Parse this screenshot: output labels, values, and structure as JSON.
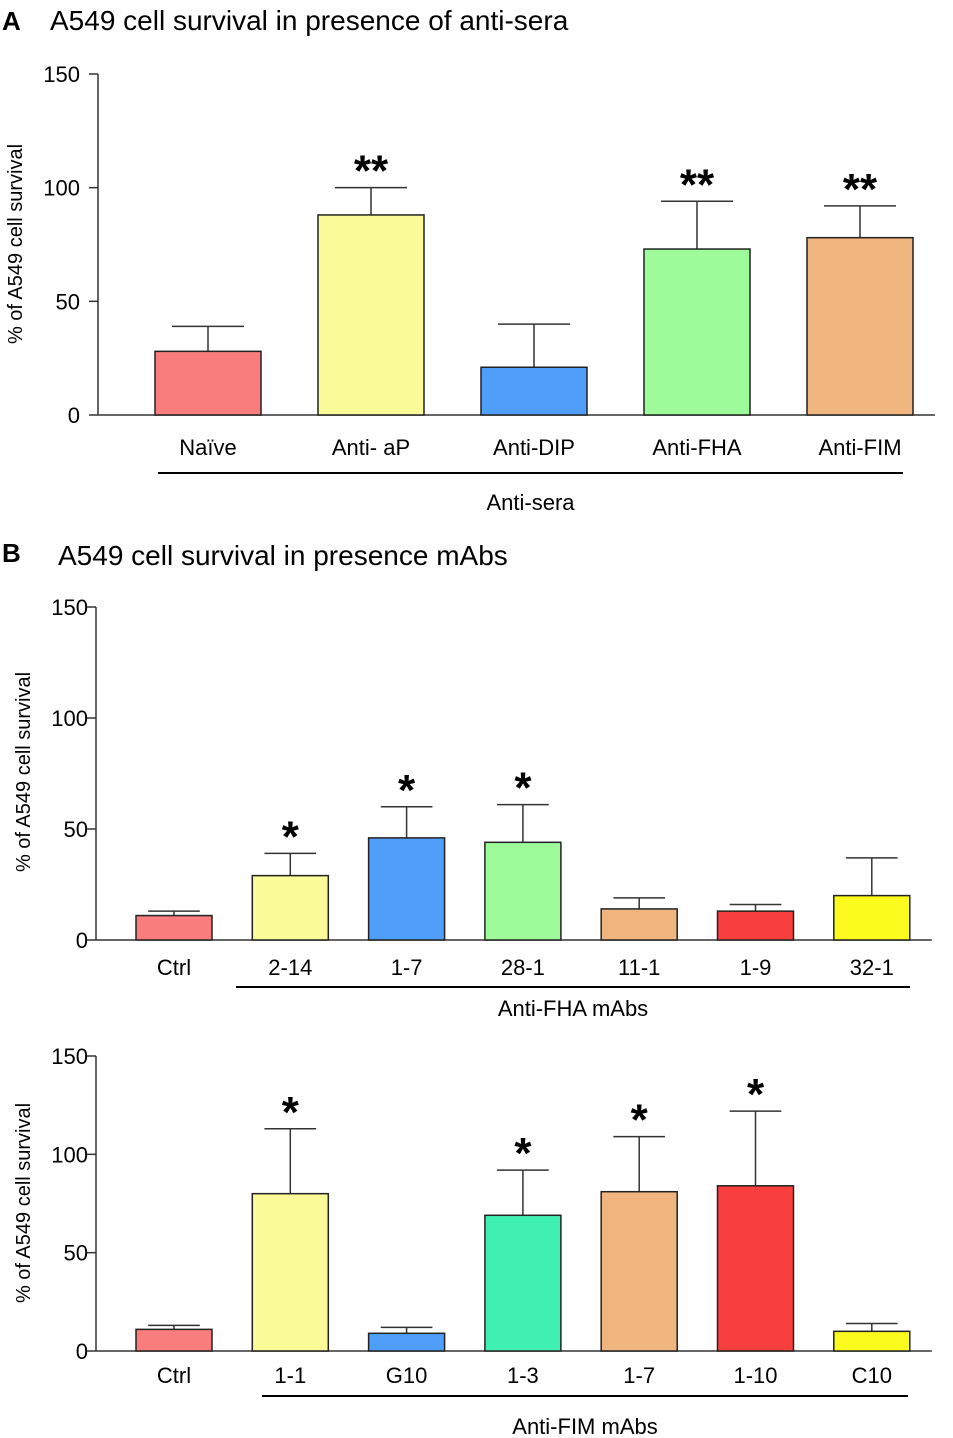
{
  "chart_data": [
    {
      "type": "bar",
      "panel": "A",
      "title": "A549 cell survival in presence of anti-sera",
      "ylabel": "% of A549 cell survival",
      "xlabel": "",
      "ylim": [
        0,
        150
      ],
      "yticks": [
        0,
        50,
        100,
        150
      ],
      "categories": [
        "Naïve",
        "Anti- aP",
        "Anti-DIP",
        "Anti-FHA",
        "Anti-FIM"
      ],
      "values": [
        28,
        88,
        21,
        73,
        78
      ],
      "errors": [
        11,
        12,
        19,
        21,
        14
      ],
      "colors": [
        "#fa7d7d",
        "#fbfb9a",
        "#4e9efa",
        "#9dfb9a",
        "#f0b47e"
      ],
      "significance": [
        "",
        "**",
        "",
        "**",
        "**"
      ],
      "groups": [
        {
          "label": "Anti-sera",
          "from": 0,
          "to": 4
        }
      ]
    },
    {
      "type": "bar",
      "panel": "B",
      "title": "A549 cell survival in presence mAbs",
      "ylabel": "% of A549 cell survival",
      "xlabel": "",
      "ylim": [
        0,
        150
      ],
      "yticks": [
        0,
        50,
        100,
        150
      ],
      "categories": [
        "Ctrl",
        "2-14",
        "1-7",
        "28-1",
        "11-1",
        "1-9",
        "32-1"
      ],
      "values": [
        11,
        29,
        46,
        44,
        14,
        13,
        20
      ],
      "errors": [
        2,
        10,
        14,
        17,
        5,
        3,
        17
      ],
      "colors": [
        "#fa7d7d",
        "#fbfb9a",
        "#4e9efa",
        "#9dfb9a",
        "#f0b47e",
        "#f93e3e",
        "#fbfb1e"
      ],
      "significance": [
        "",
        "*",
        "*",
        "*",
        "",
        "",
        ""
      ],
      "groups": [
        {
          "label": "Anti-FHA mAbs",
          "from": 1,
          "to": 6
        }
      ]
    },
    {
      "type": "bar",
      "panel": "",
      "title": "",
      "ylabel": "% of A549 cell survival",
      "xlabel": "",
      "ylim": [
        0,
        150
      ],
      "yticks": [
        0,
        50,
        100,
        150
      ],
      "categories": [
        "Ctrl",
        "1-1",
        "G10",
        "1-3",
        "1-7",
        "1-10",
        "C10"
      ],
      "values": [
        11,
        80,
        9,
        69,
        81,
        84,
        10
      ],
      "errors": [
        2,
        33,
        3,
        23,
        28,
        38,
        4
      ],
      "colors": [
        "#fa7d7d",
        "#fbfb9a",
        "#4e9efa",
        "#3ff0b0",
        "#f0b47e",
        "#f93e3e",
        "#fbfb1e"
      ],
      "significance": [
        "",
        "*",
        "",
        "*",
        "*",
        "*",
        ""
      ],
      "groups": [
        {
          "label": "Anti-FIM mAbs",
          "from": 1,
          "to": 6
        }
      ]
    }
  ]
}
